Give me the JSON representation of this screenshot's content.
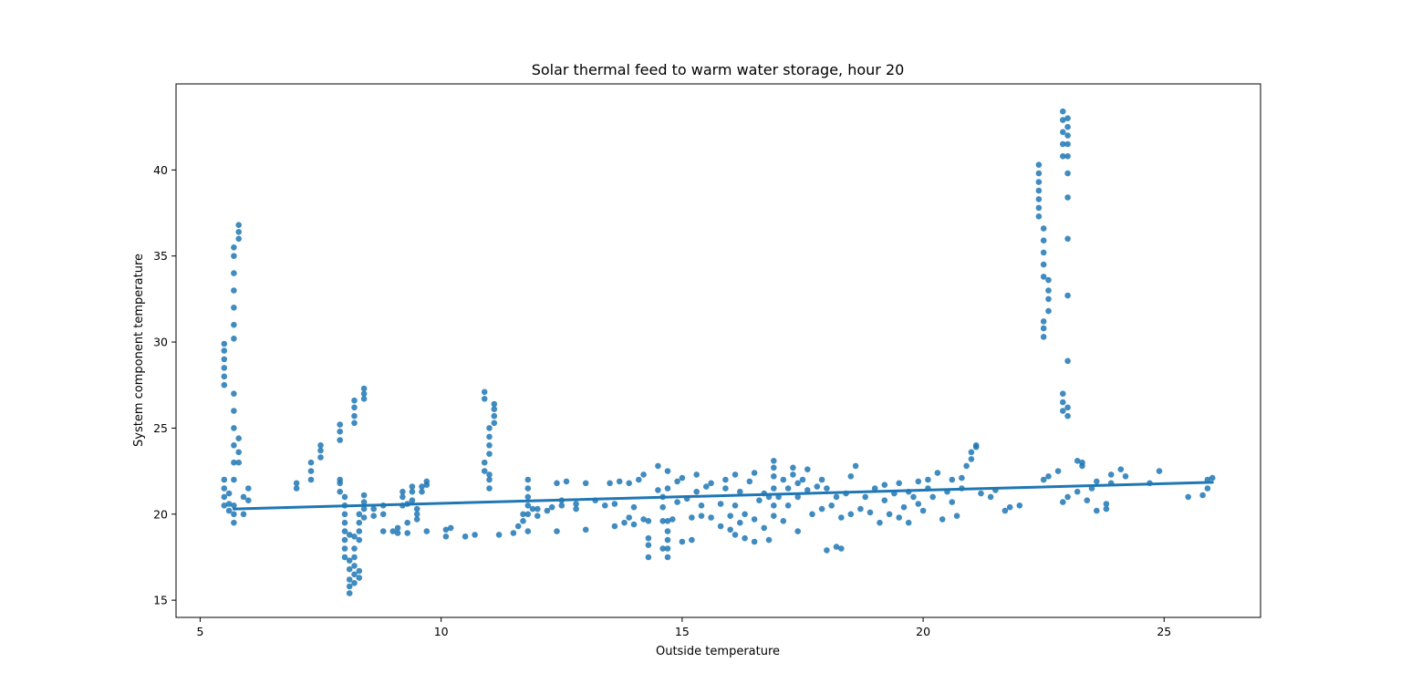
{
  "colors": {
    "series": "#1f77b4",
    "axes": "#000000",
    "background": "#ffffff"
  },
  "chart_data": {
    "type": "scatter",
    "title": "Solar thermal feed to warm water storage, hour 20",
    "xlabel": "Outside temperature",
    "ylabel": "System component temperature",
    "xlim": [
      4.5,
      27.0
    ],
    "ylim": [
      14.0,
      45.0
    ],
    "xticks": [
      5,
      10,
      15,
      20,
      25
    ],
    "yticks": [
      15,
      20,
      25,
      30,
      35,
      40
    ],
    "grid": false,
    "legend": "none",
    "regression_line": {
      "x": [
        5.7,
        26.0
      ],
      "y": [
        20.3,
        21.85
      ]
    },
    "points": [
      [
        5.5,
        27.5
      ],
      [
        5.5,
        28.0
      ],
      [
        5.5,
        28.5
      ],
      [
        5.5,
        29.0
      ],
      [
        5.5,
        29.5
      ],
      [
        5.5,
        29.9
      ],
      [
        5.5,
        20.5
      ],
      [
        5.5,
        21.0
      ],
      [
        5.5,
        21.5
      ],
      [
        5.5,
        22.0
      ],
      [
        5.6,
        20.2
      ],
      [
        5.6,
        20.6
      ],
      [
        5.6,
        21.2
      ],
      [
        5.7,
        19.5
      ],
      [
        5.7,
        20.0
      ],
      [
        5.7,
        20.5
      ],
      [
        5.7,
        30.2
      ],
      [
        5.7,
        31.0
      ],
      [
        5.7,
        32.0
      ],
      [
        5.7,
        33.0
      ],
      [
        5.7,
        34.0
      ],
      [
        5.7,
        35.0
      ],
      [
        5.7,
        35.5
      ],
      [
        5.7,
        22.0
      ],
      [
        5.7,
        23.0
      ],
      [
        5.7,
        24.0
      ],
      [
        5.7,
        25.0
      ],
      [
        5.7,
        26.0
      ],
      [
        5.7,
        27.0
      ],
      [
        5.8,
        23.0
      ],
      [
        5.8,
        23.6
      ],
      [
        5.8,
        24.4
      ],
      [
        5.8,
        36.0
      ],
      [
        5.8,
        36.4
      ],
      [
        5.8,
        36.8
      ],
      [
        5.9,
        20.0
      ],
      [
        5.9,
        21.0
      ],
      [
        6.0,
        20.8
      ],
      [
        6.0,
        21.5
      ],
      [
        7.0,
        21.5
      ],
      [
        7.0,
        21.8
      ],
      [
        7.3,
        22.0
      ],
      [
        7.3,
        22.5
      ],
      [
        7.3,
        23.0
      ],
      [
        7.5,
        23.3
      ],
      [
        7.5,
        23.7
      ],
      [
        7.5,
        24.0
      ],
      [
        7.9,
        24.3
      ],
      [
        7.9,
        24.8
      ],
      [
        7.9,
        25.2
      ],
      [
        7.9,
        21.3
      ],
      [
        7.9,
        21.8
      ],
      [
        7.9,
        22.0
      ],
      [
        8.0,
        17.5
      ],
      [
        8.0,
        18.0
      ],
      [
        8.0,
        18.5
      ],
      [
        8.0,
        19.0
      ],
      [
        8.0,
        19.5
      ],
      [
        8.0,
        20.0
      ],
      [
        8.0,
        20.5
      ],
      [
        8.0,
        21.0
      ],
      [
        8.1,
        15.4
      ],
      [
        8.1,
        15.8
      ],
      [
        8.1,
        16.2
      ],
      [
        8.1,
        16.8
      ],
      [
        8.1,
        17.3
      ],
      [
        8.1,
        18.8
      ],
      [
        8.2,
        16.0
      ],
      [
        8.2,
        16.5
      ],
      [
        8.2,
        17.0
      ],
      [
        8.2,
        17.5
      ],
      [
        8.2,
        18.0
      ],
      [
        8.2,
        18.7
      ],
      [
        8.3,
        16.3
      ],
      [
        8.3,
        16.7
      ],
      [
        8.3,
        18.5
      ],
      [
        8.3,
        19.0
      ],
      [
        8.3,
        19.5
      ],
      [
        8.3,
        20.0
      ],
      [
        8.2,
        25.3
      ],
      [
        8.2,
        25.7
      ],
      [
        8.2,
        26.2
      ],
      [
        8.2,
        26.6
      ],
      [
        8.4,
        26.7
      ],
      [
        8.4,
        27.0
      ],
      [
        8.4,
        27.3
      ],
      [
        8.4,
        19.8
      ],
      [
        8.4,
        20.3
      ],
      [
        8.4,
        20.7
      ],
      [
        8.4,
        21.1
      ],
      [
        8.6,
        19.9
      ],
      [
        8.6,
        20.3
      ],
      [
        8.8,
        19.0
      ],
      [
        8.8,
        20.0
      ],
      [
        8.8,
        20.5
      ],
      [
        9.0,
        19.0
      ],
      [
        9.1,
        18.9
      ],
      [
        9.1,
        19.2
      ],
      [
        9.2,
        20.5
      ],
      [
        9.2,
        21.0
      ],
      [
        9.2,
        21.3
      ],
      [
        9.3,
        18.9
      ],
      [
        9.3,
        19.5
      ],
      [
        9.3,
        20.6
      ],
      [
        9.4,
        20.8
      ],
      [
        9.4,
        21.3
      ],
      [
        9.4,
        21.6
      ],
      [
        9.5,
        19.7
      ],
      [
        9.5,
        20.0
      ],
      [
        9.5,
        20.3
      ],
      [
        9.6,
        21.3
      ],
      [
        9.6,
        21.6
      ],
      [
        9.7,
        21.7
      ],
      [
        9.7,
        21.9
      ],
      [
        9.7,
        19.0
      ],
      [
        10.1,
        18.7
      ],
      [
        10.1,
        19.1
      ],
      [
        10.2,
        19.2
      ],
      [
        10.5,
        18.7
      ],
      [
        10.7,
        18.8
      ],
      [
        10.9,
        22.5
      ],
      [
        10.9,
        23.0
      ],
      [
        10.9,
        26.7
      ],
      [
        10.9,
        27.1
      ],
      [
        11.0,
        21.5
      ],
      [
        11.0,
        22.0
      ],
      [
        11.0,
        22.3
      ],
      [
        11.0,
        23.5
      ],
      [
        11.0,
        24.0
      ],
      [
        11.0,
        24.5
      ],
      [
        11.0,
        25.0
      ],
      [
        11.1,
        25.3
      ],
      [
        11.1,
        25.7
      ],
      [
        11.1,
        26.1
      ],
      [
        11.1,
        26.4
      ],
      [
        11.2,
        18.8
      ],
      [
        11.5,
        18.9
      ],
      [
        11.6,
        19.3
      ],
      [
        11.7,
        19.6
      ],
      [
        11.7,
        20.0
      ],
      [
        11.8,
        19.0
      ],
      [
        11.8,
        20.0
      ],
      [
        11.8,
        20.5
      ],
      [
        11.8,
        21.0
      ],
      [
        11.8,
        21.5
      ],
      [
        11.8,
        22.0
      ],
      [
        11.9,
        20.3
      ],
      [
        12.0,
        19.9
      ],
      [
        12.0,
        20.3
      ],
      [
        12.2,
        20.2
      ],
      [
        12.3,
        20.4
      ],
      [
        12.4,
        19.0
      ],
      [
        12.4,
        21.8
      ],
      [
        12.5,
        20.5
      ],
      [
        12.5,
        20.8
      ],
      [
        12.6,
        21.9
      ],
      [
        12.8,
        20.3
      ],
      [
        12.8,
        20.6
      ],
      [
        13.0,
        19.1
      ],
      [
        13.0,
        21.8
      ],
      [
        13.2,
        20.8
      ],
      [
        13.4,
        20.5
      ],
      [
        13.5,
        21.8
      ],
      [
        13.6,
        19.3
      ],
      [
        13.6,
        20.6
      ],
      [
        13.7,
        21.9
      ],
      [
        13.8,
        19.5
      ],
      [
        13.9,
        19.8
      ],
      [
        13.9,
        21.8
      ],
      [
        14.0,
        19.4
      ],
      [
        14.0,
        20.4
      ],
      [
        14.1,
        22.0
      ],
      [
        14.2,
        19.7
      ],
      [
        14.2,
        22.3
      ],
      [
        14.3,
        17.5
      ],
      [
        14.3,
        18.2
      ],
      [
        14.3,
        18.6
      ],
      [
        14.3,
        19.6
      ],
      [
        14.5,
        21.4
      ],
      [
        14.5,
        22.8
      ],
      [
        14.6,
        18.0
      ],
      [
        14.6,
        19.6
      ],
      [
        14.6,
        20.4
      ],
      [
        14.6,
        21.0
      ],
      [
        14.7,
        17.5
      ],
      [
        14.7,
        18.0
      ],
      [
        14.7,
        18.5
      ],
      [
        14.7,
        19.0
      ],
      [
        14.7,
        19.6
      ],
      [
        14.7,
        21.5
      ],
      [
        14.7,
        22.5
      ],
      [
        14.8,
        19.7
      ],
      [
        14.9,
        20.7
      ],
      [
        14.9,
        21.9
      ],
      [
        15.0,
        18.4
      ],
      [
        15.0,
        22.1
      ],
      [
        15.1,
        20.9
      ],
      [
        15.2,
        18.5
      ],
      [
        15.2,
        19.8
      ],
      [
        15.3,
        21.3
      ],
      [
        15.3,
        22.3
      ],
      [
        15.4,
        19.9
      ],
      [
        15.4,
        20.5
      ],
      [
        15.5,
        21.6
      ],
      [
        15.6,
        19.8
      ],
      [
        15.6,
        21.8
      ],
      [
        15.8,
        19.3
      ],
      [
        15.8,
        20.6
      ],
      [
        15.9,
        21.5
      ],
      [
        15.9,
        22.0
      ],
      [
        16.0,
        19.1
      ],
      [
        16.0,
        19.9
      ],
      [
        16.1,
        18.8
      ],
      [
        16.1,
        20.5
      ],
      [
        16.1,
        22.3
      ],
      [
        16.2,
        19.5
      ],
      [
        16.2,
        21.3
      ],
      [
        16.3,
        18.6
      ],
      [
        16.3,
        20.0
      ],
      [
        16.4,
        21.9
      ],
      [
        16.5,
        18.4
      ],
      [
        16.5,
        19.7
      ],
      [
        16.5,
        22.4
      ],
      [
        16.6,
        20.8
      ],
      [
        16.7,
        19.2
      ],
      [
        16.7,
        21.2
      ],
      [
        16.8,
        18.5
      ],
      [
        16.8,
        21.0
      ],
      [
        16.9,
        19.9
      ],
      [
        16.9,
        20.5
      ],
      [
        16.9,
        21.5
      ],
      [
        16.9,
        22.2
      ],
      [
        16.9,
        22.7
      ],
      [
        16.9,
        23.1
      ],
      [
        17.0,
        21.0
      ],
      [
        17.1,
        19.6
      ],
      [
        17.1,
        22.0
      ],
      [
        17.2,
        21.5
      ],
      [
        17.2,
        20.5
      ],
      [
        17.3,
        22.3
      ],
      [
        17.3,
        22.7
      ],
      [
        17.4,
        21.0
      ],
      [
        17.4,
        21.8
      ],
      [
        17.4,
        19.0
      ],
      [
        17.5,
        22.0
      ],
      [
        17.6,
        21.4
      ],
      [
        17.6,
        22.6
      ],
      [
        17.7,
        20.0
      ],
      [
        17.8,
        21.6
      ],
      [
        17.9,
        22.0
      ],
      [
        17.9,
        20.3
      ],
      [
        18.0,
        21.5
      ],
      [
        18.0,
        17.9
      ],
      [
        18.1,
        20.5
      ],
      [
        18.2,
        18.1
      ],
      [
        18.2,
        21.0
      ],
      [
        18.3,
        19.8
      ],
      [
        18.3,
        18.0
      ],
      [
        18.4,
        21.2
      ],
      [
        18.5,
        20.0
      ],
      [
        18.5,
        22.2
      ],
      [
        18.6,
        22.8
      ],
      [
        18.7,
        20.3
      ],
      [
        18.8,
        21.0
      ],
      [
        18.9,
        20.1
      ],
      [
        19.0,
        21.5
      ],
      [
        19.1,
        19.5
      ],
      [
        19.2,
        20.8
      ],
      [
        19.2,
        21.7
      ],
      [
        19.3,
        20.0
      ],
      [
        19.4,
        21.2
      ],
      [
        19.5,
        19.8
      ],
      [
        19.5,
        21.8
      ],
      [
        19.6,
        20.4
      ],
      [
        19.7,
        21.3
      ],
      [
        19.7,
        19.5
      ],
      [
        19.8,
        21.0
      ],
      [
        19.9,
        20.6
      ],
      [
        19.9,
        21.9
      ],
      [
        20.0,
        20.2
      ],
      [
        20.1,
        21.5
      ],
      [
        20.1,
        22.0
      ],
      [
        20.2,
        21.0
      ],
      [
        20.3,
        22.4
      ],
      [
        20.4,
        19.7
      ],
      [
        20.5,
        21.3
      ],
      [
        20.6,
        20.7
      ],
      [
        20.6,
        22.0
      ],
      [
        20.7,
        19.9
      ],
      [
        20.8,
        22.1
      ],
      [
        20.8,
        21.5
      ],
      [
        20.9,
        22.8
      ],
      [
        21.0,
        23.2
      ],
      [
        21.0,
        23.6
      ],
      [
        21.1,
        23.9
      ],
      [
        21.1,
        24.0
      ],
      [
        21.2,
        21.2
      ],
      [
        21.4,
        21.0
      ],
      [
        21.5,
        21.4
      ],
      [
        21.7,
        20.2
      ],
      [
        21.8,
        20.4
      ],
      [
        22.0,
        20.5
      ],
      [
        22.4,
        37.3
      ],
      [
        22.4,
        37.8
      ],
      [
        22.4,
        38.3
      ],
      [
        22.4,
        38.8
      ],
      [
        22.4,
        39.3
      ],
      [
        22.4,
        39.8
      ],
      [
        22.4,
        40.3
      ],
      [
        22.5,
        30.3
      ],
      [
        22.5,
        30.8
      ],
      [
        22.5,
        31.2
      ],
      [
        22.5,
        33.8
      ],
      [
        22.5,
        34.5
      ],
      [
        22.5,
        35.2
      ],
      [
        22.5,
        35.9
      ],
      [
        22.5,
        36.6
      ],
      [
        22.6,
        31.8
      ],
      [
        22.6,
        32.5
      ],
      [
        22.6,
        33.0
      ],
      [
        22.6,
        33.6
      ],
      [
        22.5,
        22.0
      ],
      [
        22.6,
        22.2
      ],
      [
        22.8,
        22.5
      ],
      [
        22.9,
        26.0
      ],
      [
        22.9,
        26.5
      ],
      [
        22.9,
        27.0
      ],
      [
        22.9,
        40.8
      ],
      [
        22.9,
        41.5
      ],
      [
        22.9,
        42.2
      ],
      [
        22.9,
        42.9
      ],
      [
        22.9,
        43.4
      ],
      [
        23.0,
        25.7
      ],
      [
        23.0,
        26.2
      ],
      [
        23.0,
        28.9
      ],
      [
        23.0,
        32.7
      ],
      [
        23.0,
        36.0
      ],
      [
        23.0,
        38.4
      ],
      [
        23.0,
        39.8
      ],
      [
        23.0,
        40.8
      ],
      [
        23.0,
        41.5
      ],
      [
        23.0,
        42.0
      ],
      [
        23.0,
        42.5
      ],
      [
        23.0,
        43.0
      ],
      [
        22.9,
        20.7
      ],
      [
        23.0,
        21.0
      ],
      [
        23.2,
        21.3
      ],
      [
        23.2,
        23.1
      ],
      [
        23.3,
        22.8
      ],
      [
        23.3,
        23.0
      ],
      [
        23.4,
        20.8
      ],
      [
        23.5,
        21.5
      ],
      [
        23.6,
        20.2
      ],
      [
        23.6,
        21.9
      ],
      [
        23.8,
        20.3
      ],
      [
        23.8,
        20.6
      ],
      [
        23.9,
        21.8
      ],
      [
        23.9,
        22.3
      ],
      [
        24.1,
        22.6
      ],
      [
        24.2,
        22.2
      ],
      [
        24.7,
        21.8
      ],
      [
        24.9,
        22.5
      ],
      [
        25.5,
        21.0
      ],
      [
        25.8,
        21.1
      ],
      [
        25.9,
        21.5
      ],
      [
        25.9,
        22.0
      ],
      [
        26.0,
        22.1
      ]
    ]
  }
}
